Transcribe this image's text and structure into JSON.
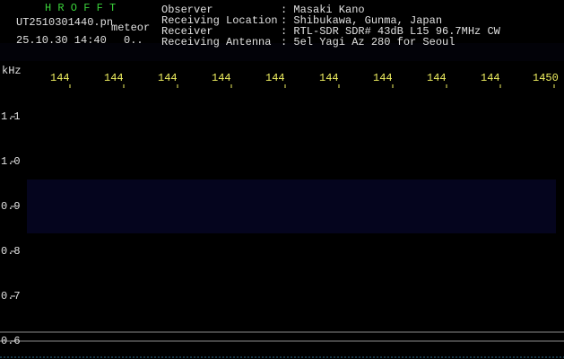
{
  "app": {
    "title": "H R O F F T",
    "file": "UT2510301440.pn",
    "mode": "meteor",
    "datetime": "25.10.30 14:40",
    "counter": "0.."
  },
  "info": [
    {
      "label": "Observer",
      "value": ": Masaki Kano"
    },
    {
      "label": "Receiving Location",
      "value": ": Shibukawa, Gunma, Japan"
    },
    {
      "label": "Receiver",
      "value": ": RTL-SDR SDR# 43dB L15 96.7MHz CW"
    },
    {
      "label": "Receiving Antenna",
      "value": ": 5el Yagi Az 280 for Seoul"
    }
  ],
  "axis": {
    "unit": "kHz",
    "top_labels": [
      "144",
      "144",
      "144",
      "144",
      "144",
      "144",
      "144",
      "144",
      "144",
      "1450"
    ],
    "side_labels": [
      "1.1",
      "1.0",
      "0.9",
      "0.8",
      "0.7",
      "0.6"
    ]
  }
}
